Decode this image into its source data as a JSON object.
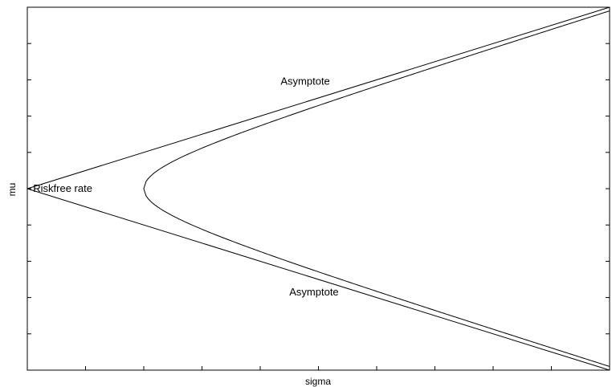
{
  "chart_data": {
    "type": "line",
    "title": "",
    "xlabel": "sigma",
    "ylabel": "mu",
    "xlim": [
      0,
      10
    ],
    "ylim": [
      -5,
      5
    ],
    "x_ticks": [
      0,
      1,
      2,
      3,
      4,
      5,
      6,
      7,
      8,
      9,
      10
    ],
    "y_ticks": [
      -4,
      -3,
      -2,
      -1,
      0,
      1,
      2,
      3,
      4
    ],
    "tick_labels_shown": false,
    "grid": false,
    "legend": "none",
    "riskfree_rate": 0,
    "asymptote_slope": 0.5,
    "hyperbola_vertex_sigma": 2,
    "series": [
      {
        "kind": "asymptote-upper",
        "x": [
          0,
          10
        ],
        "y": [
          0,
          5
        ]
      },
      {
        "kind": "asymptote-lower",
        "x": [
          0,
          10
        ],
        "y": [
          0,
          -5
        ]
      },
      {
        "kind": "frontier-hyperbola",
        "sigma_min": 2,
        "sigma_max": 10
      }
    ],
    "annotations": [
      {
        "text": "Riskfree rate",
        "x": 0.1,
        "y": 0.0
      },
      {
        "text": "Asymptote",
        "x": 4.35,
        "y": 2.95
      },
      {
        "text": "Asymptote",
        "x": 4.5,
        "y": -2.85
      }
    ]
  }
}
